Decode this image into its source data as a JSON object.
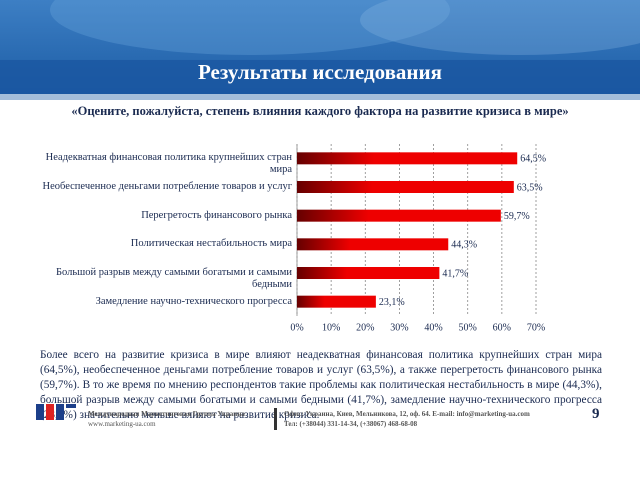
{
  "slide": {
    "title": "Результаты исследования",
    "body": "Более всего на развитие кризиса в мире влияют неадекватная финансовая политика крупнейших стран мира (64,5%), необеспеченное деньгами потребление товаров и услуг (63,5%), а также перегретость финансового рынка (59,7%). В то же время по мнению респондентов такие проблемы как политическая нестабильность в мире (44,3%), большой разрыв между самыми богатыми и самыми бедными (41,7%), замедление научно-технического прогресса (23,1%) значительно меньше влияют на развитие кризиса.",
    "footer": {
      "company": "Международная Маркетинговая Группа Украина",
      "website": "www.marketing-ua.com",
      "office": "Офис: Украина, Киев, Мельникова, 12, оф. 64. E-mail: info@marketing-ua.com",
      "phone": "Тел: (+38044) 331-14-34, (+38067) 468-68-08",
      "page": "9"
    }
  },
  "chart_data": {
    "type": "bar",
    "orientation": "horizontal",
    "title": "«Оцените, пожалуйста, степень влияния каждого фактора на развитие кризиса в мире»",
    "categories": [
      "Неадекватная финансовая политика крупнейших стран мира",
      "Необеспеченное деньгами потребление товаров и услуг",
      "Перегретость финансового рынка",
      "Политическая нестабильность мира",
      "Большой разрыв между самыми богатыми и самыми бедными",
      "Замедление научно-технического прогресса"
    ],
    "values": [
      64.5,
      63.5,
      59.7,
      44.3,
      41.7,
      23.1
    ],
    "value_labels": [
      "64,5%",
      "63,5%",
      "59,7%",
      "44,3%",
      "41,7%",
      "23,1%"
    ],
    "color": "#ee0000",
    "xlim": [
      0,
      70
    ],
    "xticks": [
      {
        "value": 0,
        "label": "0%"
      },
      {
        "value": 10,
        "label": "10%"
      },
      {
        "value": 20,
        "label": "20%"
      },
      {
        "value": 30,
        "label": "30%"
      },
      {
        "value": 40,
        "label": "40%"
      },
      {
        "value": 50,
        "label": "50%"
      },
      {
        "value": 60,
        "label": "60%"
      },
      {
        "value": 70,
        "label": "70%"
      }
    ],
    "grid": true
  }
}
